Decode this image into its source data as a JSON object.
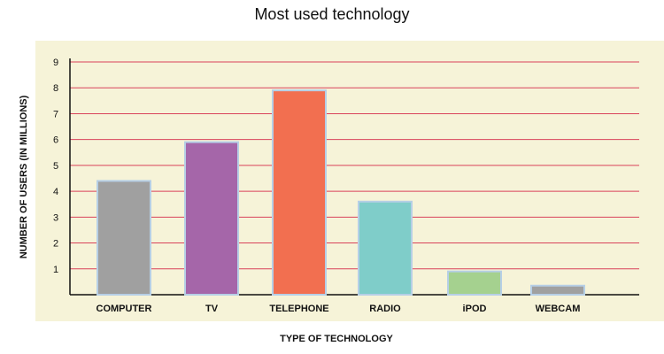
{
  "chart_data": {
    "type": "bar",
    "title": "Most used technology",
    "xlabel": "TYPE OF TECHNOLOGY",
    "ylabel": "NUMBER OF USERS (IN MILLIONS)",
    "categories": [
      "COMPUTER",
      "TV",
      "TELEPHONE",
      "RADIO",
      "iPOD",
      "WEBCAM"
    ],
    "values": [
      4.4,
      5.9,
      7.9,
      3.6,
      0.9,
      0.35
    ],
    "colors": [
      "#a0a0a0",
      "#a566a9",
      "#f26f50",
      "#7fcdc9",
      "#a5d18f",
      "#a0a0a0"
    ],
    "yticks": [
      1,
      2,
      3,
      4,
      5,
      6,
      7,
      8,
      9
    ],
    "ylim": [
      0,
      9
    ],
    "grid": true,
    "plot_background": "#f6f3d8",
    "gridline_color": "#d9425a",
    "bar_border_color": "#b6cfe6"
  }
}
